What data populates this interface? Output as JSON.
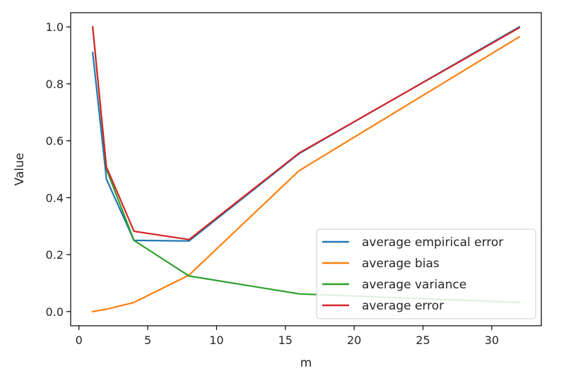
{
  "chart_data": {
    "type": "line",
    "title": "",
    "xlabel": "m",
    "ylabel": "Value",
    "xlim": [
      -0.6,
      33.6
    ],
    "ylim": [
      -0.05,
      1.05
    ],
    "xticks": [
      0,
      5,
      10,
      15,
      20,
      25,
      30
    ],
    "yticks": [
      0.0,
      0.2,
      0.4,
      0.6,
      0.8,
      1.0
    ],
    "ytick_labels": [
      "0.0",
      "0.2",
      "0.4",
      "0.6",
      "0.8",
      "1.0"
    ],
    "grid": false,
    "legend_position": "lower right",
    "x": [
      1,
      2,
      4,
      8,
      16,
      32
    ],
    "series": [
      {
        "name": "average empirical error",
        "color": "#1f77b4",
        "values": [
          0.91,
          0.465,
          0.25,
          0.248,
          0.555,
          1.0
        ]
      },
      {
        "name": "average bias",
        "color": "#ff7f0e",
        "values": [
          0.0,
          0.008,
          0.032,
          0.128,
          0.495,
          0.965
        ]
      },
      {
        "name": "average variance",
        "color": "#2ca02c",
        "values": [
          1.0,
          0.5,
          0.25,
          0.125,
          0.062,
          0.032
        ]
      },
      {
        "name": "average error",
        "color": "#d62728",
        "values": [
          1.0,
          0.508,
          0.282,
          0.253,
          0.557,
          0.997
        ]
      }
    ]
  }
}
